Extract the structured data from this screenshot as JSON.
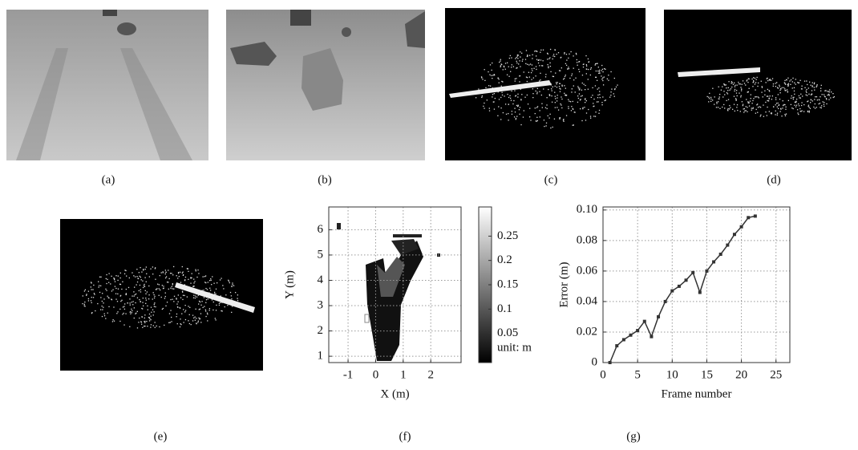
{
  "panels": [
    "(a)",
    "(b)",
    "(c)",
    "(d)",
    "(e)",
    "(f)",
    "(g)"
  ],
  "chart_data": [
    {
      "type": "heatmap",
      "xlabel": "X (m)",
      "ylabel": "Y (m)",
      "xlim": [
        -1.7,
        3.1
      ],
      "xticks": [
        -1,
        0,
        1,
        2
      ],
      "ylim": [
        0.75,
        6.9
      ],
      "yticks": [
        1,
        2,
        3,
        4,
        5,
        6
      ],
      "clim": [
        -0.01,
        0.31
      ],
      "cticks": [
        0.05,
        0.1,
        0.15,
        0.2,
        0.25
      ],
      "colorbar_label": "unit: m",
      "grid": true
    },
    {
      "type": "line",
      "xlabel": "Frame number",
      "ylabel": "Error (m)",
      "x": [
        1,
        2,
        3,
        4,
        5,
        6,
        7,
        8,
        9,
        10,
        11,
        12,
        13,
        14,
        15,
        16,
        17,
        18,
        19,
        20,
        21,
        22
      ],
      "values": [
        0,
        0.011,
        0.015,
        0.018,
        0.021,
        0.027,
        0.017,
        0.03,
        0.04,
        0.047,
        0.05,
        0.054,
        0.059,
        0.046,
        0.06,
        0.066,
        0.071,
        0.077,
        0.084,
        0.089,
        0.095,
        0.096
      ],
      "color": "#333333",
      "xlim": [
        0,
        27
      ],
      "xticks": [
        0,
        5,
        10,
        15,
        20,
        25
      ],
      "ylim": [
        0,
        0.102
      ],
      "yticks": [
        0,
        0.02,
        0.04,
        0.06,
        0.08,
        {
          "value": 0.1,
          "label": "0.10"
        }
      ],
      "grid": true
    }
  ]
}
